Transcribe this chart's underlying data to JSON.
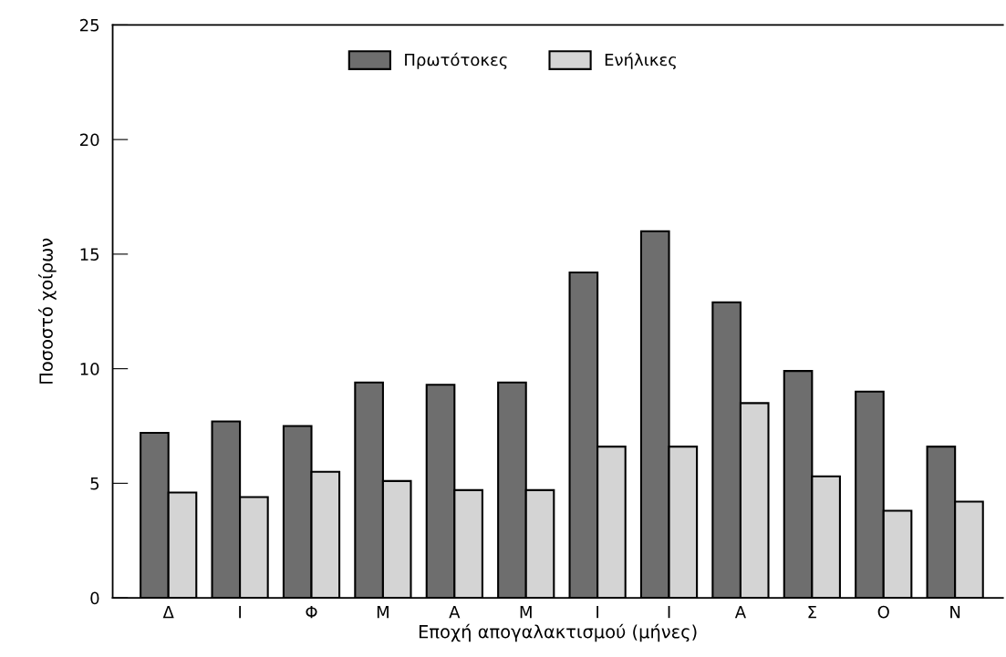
{
  "chart_data": {
    "type": "bar",
    "xlabel": "Εποχή απογαλακτισμού (μήνες)",
    "ylabel": "Ποσοστό χοίρων",
    "categories": [
      "Δ",
      "Ι",
      "Φ",
      "Μ",
      "Α",
      "Μ",
      "Ι",
      "Ι",
      "Α",
      "Σ",
      "Ο",
      "Ν"
    ],
    "series": [
      {
        "name": "Πρωτότοκες",
        "color": "#6e6e6e",
        "values": [
          7.2,
          7.7,
          7.5,
          9.4,
          9.3,
          9.4,
          14.2,
          16.0,
          12.9,
          9.9,
          9.0,
          6.6
        ]
      },
      {
        "name": "Ενήλικες",
        "color": "#d4d4d4",
        "values": [
          4.6,
          4.4,
          5.5,
          5.1,
          4.7,
          4.7,
          6.6,
          6.6,
          8.5,
          5.3,
          3.8,
          4.2
        ]
      }
    ],
    "ylim": [
      0,
      25
    ],
    "yticks": [
      0,
      5,
      10,
      15,
      20,
      25
    ],
    "grid": false,
    "legend": "top"
  }
}
